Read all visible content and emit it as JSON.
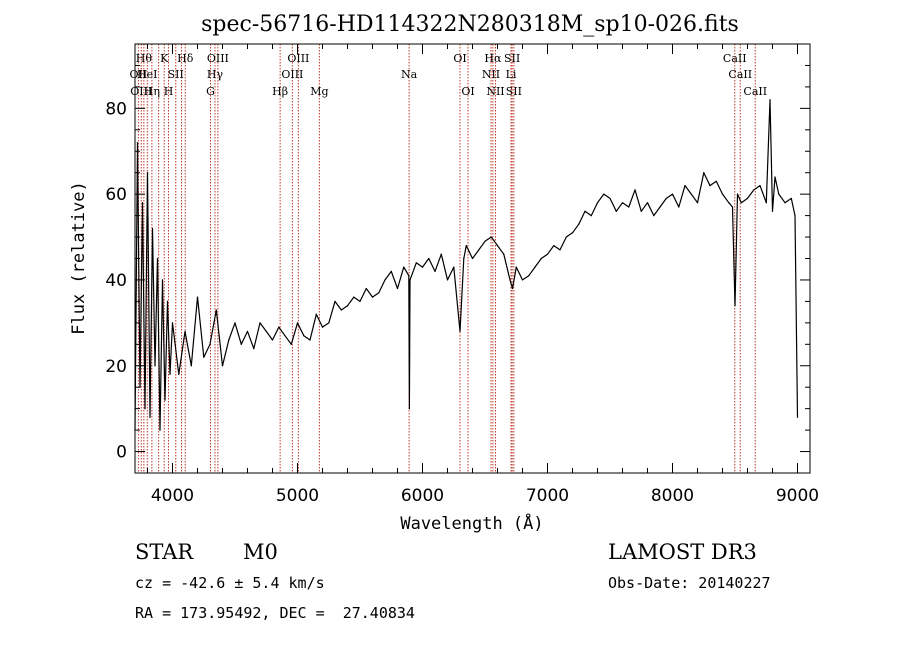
{
  "chart_data": {
    "type": "line",
    "title": "spec-56716-HD114322N280318M_sp10-026.fits",
    "xlabel": "Wavelength (Å)",
    "ylabel": "Flux (relative)",
    "xlim": [
      3700,
      9100
    ],
    "ylim": [
      -5,
      95
    ],
    "xticks": [
      4000,
      5000,
      6000,
      7000,
      8000,
      9000
    ],
    "yticks": [
      0,
      20,
      40,
      60,
      80
    ],
    "grid": false,
    "series": [
      {
        "name": "flux",
        "x": [
          3700,
          3720,
          3740,
          3760,
          3780,
          3800,
          3820,
          3840,
          3860,
          3880,
          3900,
          3920,
          3940,
          3960,
          3980,
          4000,
          4050,
          4100,
          4150,
          4200,
          4250,
          4300,
          4350,
          4400,
          4450,
          4500,
          4550,
          4600,
          4650,
          4700,
          4750,
          4800,
          4850,
          4900,
          4950,
          5000,
          5050,
          5100,
          5150,
          5200,
          5250,
          5300,
          5350,
          5400,
          5450,
          5500,
          5550,
          5600,
          5650,
          5700,
          5750,
          5800,
          5850,
          5890,
          5895,
          5900,
          5950,
          6000,
          6050,
          6100,
          6150,
          6200,
          6250,
          6300,
          6330,
          6350,
          6400,
          6450,
          6500,
          6550,
          6600,
          6650,
          6700,
          6720,
          6750,
          6800,
          6850,
          6900,
          6950,
          7000,
          7050,
          7100,
          7150,
          7200,
          7250,
          7300,
          7350,
          7400,
          7450,
          7500,
          7550,
          7600,
          7650,
          7700,
          7750,
          7800,
          7850,
          7900,
          7950,
          8000,
          8050,
          8100,
          8150,
          8200,
          8250,
          8300,
          8350,
          8400,
          8450,
          8480,
          8500,
          8520,
          8550,
          8600,
          8650,
          8700,
          8750,
          8780,
          8800,
          8820,
          8850,
          8900,
          8950,
          8980,
          9000
        ],
        "y": [
          5,
          72,
          15,
          58,
          10,
          65,
          8,
          52,
          20,
          45,
          5,
          40,
          12,
          35,
          18,
          30,
          18,
          28,
          20,
          36,
          22,
          25,
          33,
          20,
          26,
          30,
          25,
          28,
          24,
          30,
          28,
          26,
          29,
          27,
          25,
          30,
          27,
          26,
          32,
          29,
          30,
          35,
          33,
          34,
          36,
          35,
          38,
          36,
          37,
          40,
          42,
          38,
          43,
          41,
          10,
          40,
          44,
          43,
          45,
          42,
          46,
          40,
          43,
          28,
          45,
          48,
          45,
          47,
          49,
          50,
          48,
          46,
          40,
          38,
          43,
          40,
          41,
          43,
          45,
          46,
          48,
          47,
          50,
          51,
          53,
          56,
          55,
          58,
          60,
          59,
          56,
          58,
          57,
          61,
          56,
          58,
          55,
          57,
          59,
          60,
          57,
          62,
          60,
          58,
          65,
          62,
          63,
          60,
          58,
          57,
          34,
          60,
          58,
          59,
          61,
          62,
          58,
          82,
          56,
          64,
          60,
          58,
          59,
          55,
          8
        ]
      }
    ],
    "lines": [
      {
        "wl": 3727,
        "label": "OII",
        "row": 2
      },
      {
        "wl": 3750,
        "label": "OIII",
        "row": 3
      },
      {
        "wl": 3771,
        "label": "Hθ",
        "row": 1
      },
      {
        "wl": 3798,
        "label": "HeI",
        "row": 2
      },
      {
        "wl": 3835,
        "label": "Hη",
        "row": 3
      },
      {
        "wl": 3889,
        "label": "",
        "row": 0
      },
      {
        "wl": 3934,
        "label": "K",
        "row": 1
      },
      {
        "wl": 3968,
        "label": "H",
        "row": 3
      },
      {
        "wl": 4026,
        "label": "SII",
        "row": 2
      },
      {
        "wl": 4072,
        "label": "",
        "row": 0
      },
      {
        "wl": 4102,
        "label": "Hδ",
        "row": 1
      },
      {
        "wl": 4304,
        "label": "G",
        "row": 3
      },
      {
        "wl": 4340,
        "label": "Hγ",
        "row": 2
      },
      {
        "wl": 4363,
        "label": "OIII",
        "row": 1
      },
      {
        "wl": 4861,
        "label": "Hβ",
        "row": 3
      },
      {
        "wl": 4959,
        "label": "OIII",
        "row": 2
      },
      {
        "wl": 5007,
        "label": "OIII",
        "row": 1
      },
      {
        "wl": 5175,
        "label": "Mg",
        "row": 3
      },
      {
        "wl": 5893,
        "label": "Na",
        "row": 2
      },
      {
        "wl": 6300,
        "label": "OI",
        "row": 1
      },
      {
        "wl": 6364,
        "label": "OI",
        "row": 3
      },
      {
        "wl": 6548,
        "label": "NII",
        "row": 2
      },
      {
        "wl": 6563,
        "label": "Hα",
        "row": 1
      },
      {
        "wl": 6584,
        "label": "NII",
        "row": 3
      },
      {
        "wl": 6708,
        "label": "Li",
        "row": 2
      },
      {
        "wl": 6717,
        "label": "SII",
        "row": 1
      },
      {
        "wl": 6731,
        "label": "SII",
        "row": 3
      },
      {
        "wl": 8498,
        "label": "CaII",
        "row": 1
      },
      {
        "wl": 8542,
        "label": "CaII",
        "row": 2
      },
      {
        "wl": 8662,
        "label": "CaII",
        "row": 3
      }
    ]
  },
  "info": {
    "class": "STAR",
    "subclass": "M0",
    "survey": "LAMOST DR3",
    "velocity": "cz = -42.6 ± 5.4 km/s",
    "obsdate": "Obs-Date: 20140227",
    "coords": "RA = 173.95492, DEC =  27.40834"
  },
  "colors": {
    "axis": "#000000",
    "spectrum": "#000000",
    "emission_line": "#c0392b"
  }
}
